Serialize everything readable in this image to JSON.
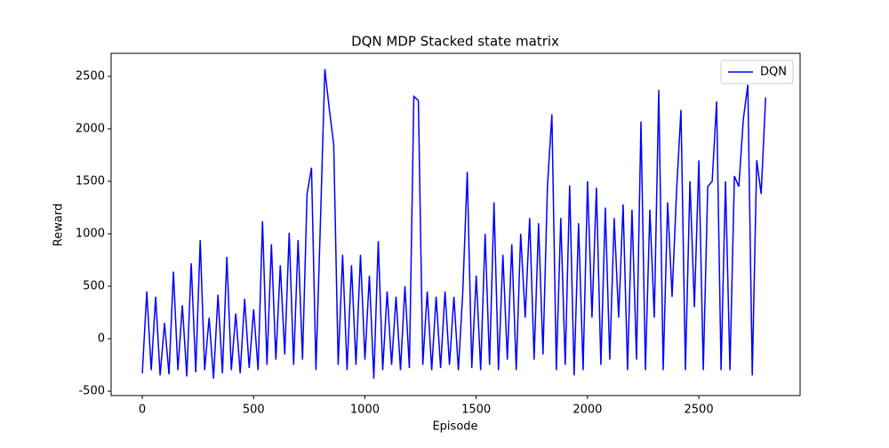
{
  "chart_data": {
    "type": "line",
    "title": "DQN MDP Stacked state matrix",
    "xlabel": "Episode",
    "ylabel": "Reward",
    "x": [
      0,
      20,
      40,
      60,
      80,
      100,
      120,
      140,
      160,
      180,
      200,
      220,
      240,
      260,
      280,
      300,
      320,
      340,
      360,
      380,
      400,
      420,
      440,
      460,
      480,
      500,
      520,
      540,
      560,
      580,
      600,
      620,
      640,
      660,
      680,
      700,
      720,
      740,
      760,
      780,
      800,
      820,
      840,
      860,
      880,
      900,
      920,
      940,
      960,
      980,
      1000,
      1020,
      1040,
      1060,
      1080,
      1100,
      1120,
      1140,
      1160,
      1180,
      1200,
      1220,
      1240,
      1260,
      1280,
      1300,
      1320,
      1340,
      1360,
      1380,
      1400,
      1420,
      1440,
      1460,
      1480,
      1500,
      1520,
      1540,
      1560,
      1580,
      1600,
      1620,
      1640,
      1660,
      1680,
      1700,
      1720,
      1740,
      1760,
      1780,
      1800,
      1820,
      1840,
      1860,
      1880,
      1900,
      1920,
      1940,
      1960,
      1980,
      2000,
      2020,
      2040,
      2060,
      2080,
      2100,
      2120,
      2140,
      2160,
      2180,
      2200,
      2220,
      2240,
      2260,
      2280,
      2300,
      2320,
      2340,
      2360,
      2380,
      2400,
      2420,
      2440,
      2460,
      2480,
      2500,
      2520,
      2540,
      2560,
      2580,
      2600,
      2620,
      2640,
      2660,
      2680,
      2700,
      2720,
      2740,
      2760,
      2780,
      2800
    ],
    "series": [
      {
        "name": "DQN",
        "color": "#0000ff",
        "values": [
          -330,
          450,
          -300,
          400,
          -350,
          150,
          -340,
          640,
          -300,
          320,
          -360,
          720,
          -320,
          940,
          -300,
          200,
          -380,
          420,
          -330,
          780,
          -300,
          240,
          -330,
          380,
          -280,
          280,
          -300,
          1120,
          -250,
          900,
          -200,
          700,
          -150,
          1010,
          -250,
          940,
          -200,
          1380,
          1630,
          -300,
          1100,
          2570,
          2190,
          1850,
          -250,
          800,
          -300,
          700,
          -250,
          800,
          -200,
          600,
          -380,
          930,
          -300,
          450,
          -250,
          400,
          -300,
          500,
          -280,
          2310,
          2270,
          -250,
          450,
          -300,
          400,
          -280,
          450,
          -250,
          400,
          -300,
          450,
          1590,
          -280,
          600,
          -300,
          1000,
          -250,
          1300,
          -300,
          800,
          -200,
          900,
          -300,
          1000,
          200,
          1150,
          -200,
          1100,
          -150,
          1450,
          2140,
          -300,
          1150,
          -250,
          1460,
          -350,
          1100,
          -300,
          1500,
          200,
          1440,
          -250,
          1250,
          -200,
          1150,
          200,
          1280,
          -300,
          1230,
          -200,
          2070,
          -300,
          1230,
          200,
          2370,
          -300,
          1300,
          400,
          1400,
          2180,
          -300,
          1500,
          300,
          1700,
          -300,
          1450,
          1500,
          2260,
          -300,
          1500,
          -300,
          1550,
          1450,
          2090,
          2420,
          -350,
          1700,
          1380,
          2300
        ]
      }
    ],
    "xlim": [
      -140,
      2955
    ],
    "ylim": [
      -542,
      2720
    ],
    "xticks": [
      0,
      500,
      1000,
      1500,
      2000,
      2500
    ],
    "yticks": [
      -500,
      0,
      500,
      1000,
      1500,
      2000,
      2500
    ],
    "legend": "upper right"
  }
}
